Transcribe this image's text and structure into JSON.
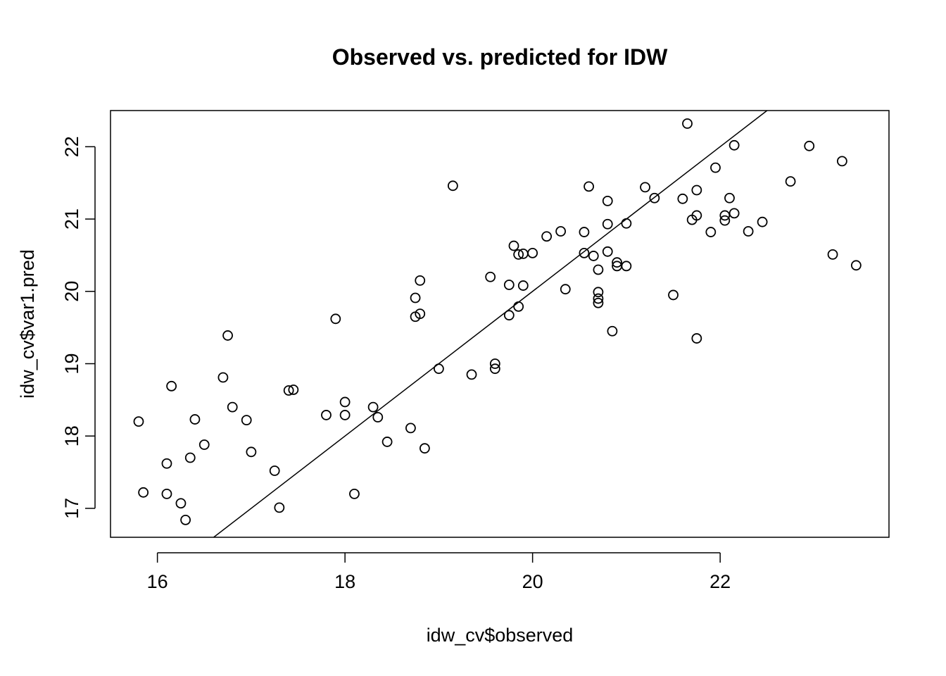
{
  "chart_data": {
    "type": "scatter",
    "title": "Observed vs. predicted for IDW",
    "xlabel": "idw_cv$observed",
    "ylabel": "idw_cv$var1.pred",
    "xlim": [
      15.5,
      23.8
    ],
    "ylim": [
      16.6,
      22.5
    ],
    "xticks": [
      16,
      18,
      20,
      22
    ],
    "yticks": [
      17,
      18,
      19,
      20,
      21,
      22
    ],
    "xtick_labels": [
      "16",
      "18",
      "20",
      "22"
    ],
    "ytick_labels": [
      "17",
      "18",
      "19",
      "20",
      "21",
      "22"
    ],
    "grid": false,
    "legend": false,
    "reference_line": {
      "intercept": 0,
      "slope": 1
    },
    "points": [
      [
        15.8,
        18.2
      ],
      [
        15.85,
        17.22
      ],
      [
        16.1,
        17.62
      ],
      [
        16.1,
        17.2
      ],
      [
        16.15,
        18.69
      ],
      [
        16.25,
        17.07
      ],
      [
        16.3,
        16.84
      ],
      [
        16.35,
        17.7
      ],
      [
        16.4,
        18.23
      ],
      [
        16.5,
        17.88
      ],
      [
        16.7,
        18.81
      ],
      [
        16.75,
        19.39
      ],
      [
        16.8,
        18.4
      ],
      [
        16.95,
        18.22
      ],
      [
        17.0,
        17.78
      ],
      [
        17.25,
        17.52
      ],
      [
        17.3,
        17.01
      ],
      [
        17.4,
        18.63
      ],
      [
        17.45,
        18.64
      ],
      [
        17.8,
        18.29
      ],
      [
        17.9,
        19.62
      ],
      [
        18.0,
        18.47
      ],
      [
        18.0,
        18.29
      ],
      [
        18.1,
        17.2
      ],
      [
        18.3,
        18.4
      ],
      [
        18.35,
        18.26
      ],
      [
        18.45,
        17.92
      ],
      [
        18.7,
        18.11
      ],
      [
        18.75,
        19.91
      ],
      [
        18.75,
        19.65
      ],
      [
        18.8,
        19.69
      ],
      [
        18.8,
        20.15
      ],
      [
        18.85,
        17.83
      ],
      [
        19.0,
        18.93
      ],
      [
        19.15,
        21.46
      ],
      [
        19.35,
        18.85
      ],
      [
        19.55,
        20.2
      ],
      [
        19.6,
        19.0
      ],
      [
        19.6,
        18.93
      ],
      [
        19.75,
        20.09
      ],
      [
        19.75,
        19.67
      ],
      [
        19.8,
        20.63
      ],
      [
        19.85,
        20.51
      ],
      [
        19.85,
        19.79
      ],
      [
        19.9,
        20.52
      ],
      [
        19.9,
        20.08
      ],
      [
        20.0,
        20.53
      ],
      [
        20.15,
        20.76
      ],
      [
        20.3,
        20.83
      ],
      [
        20.35,
        20.03
      ],
      [
        20.55,
        20.82
      ],
      [
        20.55,
        20.53
      ],
      [
        20.6,
        21.45
      ],
      [
        20.65,
        20.49
      ],
      [
        20.7,
        20.3
      ],
      [
        20.7,
        19.99
      ],
      [
        20.7,
        19.9
      ],
      [
        20.7,
        19.84
      ],
      [
        20.8,
        21.25
      ],
      [
        20.8,
        20.93
      ],
      [
        20.8,
        20.55
      ],
      [
        20.85,
        19.45
      ],
      [
        20.9,
        20.4
      ],
      [
        20.9,
        20.35
      ],
      [
        21.0,
        20.94
      ],
      [
        21.0,
        20.35
      ],
      [
        21.2,
        21.44
      ],
      [
        21.3,
        21.29
      ],
      [
        21.5,
        19.95
      ],
      [
        21.6,
        21.28
      ],
      [
        21.65,
        22.32
      ],
      [
        21.7,
        20.99
      ],
      [
        21.75,
        21.4
      ],
      [
        21.75,
        21.05
      ],
      [
        21.75,
        19.35
      ],
      [
        21.9,
        20.82
      ],
      [
        21.95,
        21.71
      ],
      [
        22.05,
        21.05
      ],
      [
        22.05,
        20.98
      ],
      [
        22.1,
        21.29
      ],
      [
        22.15,
        22.02
      ],
      [
        22.15,
        21.08
      ],
      [
        22.3,
        20.83
      ],
      [
        22.45,
        20.96
      ],
      [
        22.75,
        21.52
      ],
      [
        22.95,
        22.01
      ],
      [
        23.2,
        20.51
      ],
      [
        23.3,
        21.8
      ],
      [
        23.45,
        20.36
      ]
    ]
  }
}
